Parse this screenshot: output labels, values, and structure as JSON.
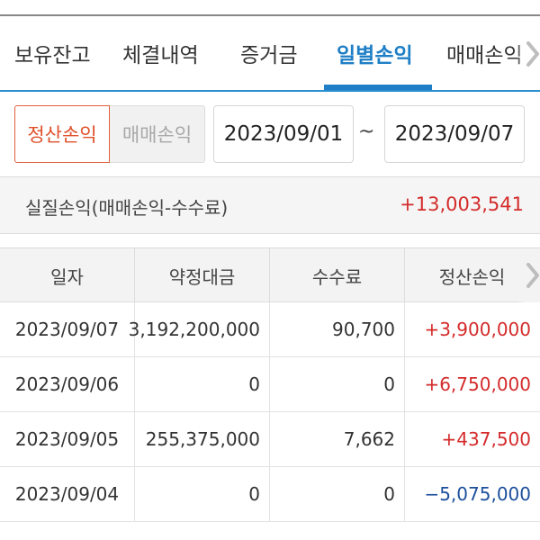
{
  "tabs": [
    {
      "label": "보유잔고"
    },
    {
      "label": "체결내역"
    },
    {
      "label": "증거금"
    },
    {
      "label": "일별손익"
    },
    {
      "label": "매매손익"
    }
  ],
  "active_tab": "일별손익",
  "filter": {
    "toggle_active": "정산손익",
    "toggle_inactive": "매매손익",
    "date_from": "2023/09/01",
    "separator": "~",
    "date_to": "2023/09/07"
  },
  "summary": {
    "label": "실질손익(매매손익-수수료)",
    "value": "+13,003,541"
  },
  "table": {
    "headers": [
      "일자",
      "약정대금",
      "수수료",
      "정산손익"
    ],
    "rows": [
      {
        "date": "2023/09/07",
        "amount": "3,192,200,000",
        "fee": "90,700",
        "pnl": "+3,900,000"
      },
      {
        "date": "2023/09/06",
        "amount": "0",
        "fee": "0",
        "pnl": "+6,750,000"
      },
      {
        "date": "2023/09/05",
        "amount": "255,375,000",
        "fee": "7,662",
        "pnl": "+437,500"
      },
      {
        "date": "2023/09/04",
        "amount": "0",
        "fee": "0",
        "pnl": "−5,075,000"
      }
    ]
  },
  "colors": {
    "accent": "#1f7fc6",
    "positive": "#d42b2b",
    "negative": "#1d4f9c",
    "toggle_active": "#e0502a"
  },
  "icons": {
    "tab_scroll": "chevron-right-icon",
    "column_scroll": "chevron-right-icon"
  }
}
